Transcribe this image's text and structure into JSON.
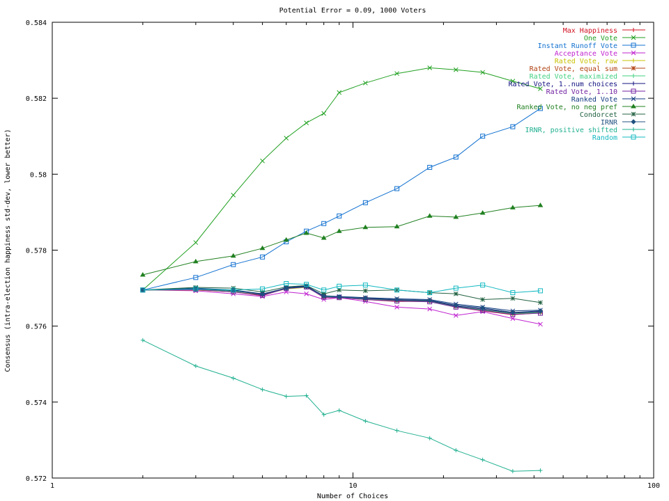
{
  "chart_data": {
    "type": "line",
    "title": "Potential Error = 0.09, 1000 Voters",
    "xlabel": "Number of Choices",
    "ylabel": "Consensus (intra-election happiness std-dev, lower better)",
    "xscale": "log",
    "xlim": [
      1,
      100
    ],
    "ylim": [
      0.572,
      0.584
    ],
    "xticks": [
      1,
      10,
      100
    ],
    "xtick_labels": [
      "1",
      "10",
      "100"
    ],
    "yticks": [
      0.572,
      0.574,
      0.576,
      0.578,
      0.58,
      0.582,
      0.584
    ],
    "ytick_labels": [
      "0.572",
      "0.574",
      "0.576",
      "0.578",
      "0.58",
      "0.582",
      "0.584"
    ],
    "grid": false,
    "legend_position": "top-right",
    "x": [
      2,
      3,
      4,
      5,
      6,
      7,
      8,
      9,
      11,
      14,
      18,
      22,
      27,
      34,
      42
    ],
    "series": [
      {
        "name": "Max Happiness",
        "color": "#d01020",
        "marker": "plus",
        "values": [
          0.57695,
          0.57695,
          0.5769,
          0.5768,
          0.577,
          0.57705,
          0.57675,
          0.57675,
          0.5767,
          0.57665,
          0.57665,
          0.5765,
          0.5764,
          0.5763,
          0.57635
        ]
      },
      {
        "name": "One Vote",
        "color": "#20a020",
        "marker": "cross",
        "values": [
          0.57695,
          0.5782,
          0.57945,
          0.58035,
          0.58095,
          0.58135,
          0.5816,
          0.58215,
          0.5824,
          0.58265,
          0.5828,
          0.58275,
          0.58268,
          0.58245,
          0.58225
        ]
      },
      {
        "name": "Instant Runoff Vote",
        "color": "#1070d0",
        "marker": "square",
        "values": [
          0.57695,
          0.57728,
          0.57762,
          0.57782,
          0.57822,
          0.5785,
          0.5787,
          0.5789,
          0.57925,
          0.57962,
          0.58018,
          0.58045,
          0.581,
          0.58125,
          0.58173
        ]
      },
      {
        "name": "Acceptance Vote",
        "color": "#c020d0",
        "marker": "x",
        "values": [
          0.57695,
          0.57693,
          0.57685,
          0.57678,
          0.5769,
          0.57685,
          0.5767,
          0.57675,
          0.57665,
          0.5765,
          0.57645,
          0.57628,
          0.57638,
          0.5762,
          0.57605
        ]
      },
      {
        "name": "Rated Vote, raw",
        "color": "#c8c000",
        "marker": "plus",
        "values": [
          0.57695,
          0.57695,
          0.5769,
          0.57682,
          0.57698,
          0.57702,
          0.57678,
          0.57675,
          0.5767,
          0.57668,
          0.57665,
          0.57652,
          0.57642,
          0.57632,
          0.57636
        ]
      },
      {
        "name": "Rated Vote, equal sum",
        "color": "#b04010",
        "marker": "star",
        "values": [
          0.57695,
          0.57697,
          0.57693,
          0.57685,
          0.577,
          0.57704,
          0.57678,
          0.57676,
          0.57672,
          0.57668,
          0.57666,
          0.57652,
          0.57644,
          0.57634,
          0.57637
        ]
      },
      {
        "name": "Rated Vote, maximized",
        "color": "#40d080",
        "marker": "plus",
        "values": [
          0.57695,
          0.57696,
          0.57692,
          0.57684,
          0.57699,
          0.57703,
          0.57677,
          0.57676,
          0.57671,
          0.57667,
          0.57665,
          0.57651,
          0.57643,
          0.57633,
          0.57636
        ]
      },
      {
        "name": "Rated Vote, 1..num choices",
        "color": "#101080",
        "marker": "plus",
        "values": [
          0.57695,
          0.57698,
          0.57694,
          0.57683,
          0.57701,
          0.57706,
          0.57679,
          0.57677,
          0.57673,
          0.57669,
          0.57667,
          0.57653,
          0.57645,
          0.57635,
          0.57638
        ]
      },
      {
        "name": "Rated Vote, 1..10",
        "color": "#7020a0",
        "marker": "square",
        "values": [
          0.57695,
          0.57696,
          0.5769,
          0.57681,
          0.57699,
          0.57703,
          0.57676,
          0.57675,
          0.5767,
          0.57666,
          0.57664,
          0.5765,
          0.57641,
          0.57631,
          0.57634
        ]
      },
      {
        "name": "Ranked Vote",
        "color": "#103880",
        "marker": "x",
        "values": [
          0.57695,
          0.577,
          0.57695,
          0.57685,
          0.577,
          0.57705,
          0.5768,
          0.57678,
          0.57675,
          0.57672,
          0.5767,
          0.57658,
          0.5765,
          0.5764,
          0.57642
        ]
      },
      {
        "name": "Ranked Vote, no neg pref",
        "color": "#208020",
        "marker": "triangle",
        "values": [
          0.57735,
          0.5777,
          0.57785,
          0.57805,
          0.57827,
          0.57845,
          0.57832,
          0.5785,
          0.5786,
          0.57862,
          0.5789,
          0.57887,
          0.57898,
          0.57912,
          0.57918
        ]
      },
      {
        "name": "Condorcet",
        "color": "#206040",
        "marker": "star",
        "values": [
          0.57695,
          0.57702,
          0.577,
          0.5769,
          0.57703,
          0.57707,
          0.57685,
          0.57695,
          0.57693,
          0.57695,
          0.57688,
          0.57685,
          0.5767,
          0.57673,
          0.57662
        ]
      },
      {
        "name": "IRNR",
        "color": "#205080",
        "marker": "diamond",
        "values": [
          0.57695,
          0.57698,
          0.57694,
          0.57684,
          0.577,
          0.57704,
          0.57679,
          0.57677,
          0.57674,
          0.5767,
          0.57668,
          0.57655,
          0.57648,
          0.57636,
          0.5764
        ]
      },
      {
        "name": "IRNR, positive shifted",
        "color": "#20b090",
        "marker": "plus",
        "values": [
          0.57563,
          0.57495,
          0.57463,
          0.57433,
          0.57415,
          0.57417,
          0.57367,
          0.57378,
          0.5735,
          0.57325,
          0.57305,
          0.57273,
          0.57248,
          0.57218,
          0.5722
        ]
      },
      {
        "name": "Random",
        "color": "#10b8c0",
        "marker": "square",
        "values": [
          0.57695,
          0.57698,
          0.57695,
          0.57698,
          0.57712,
          0.5771,
          0.57695,
          0.57705,
          0.57708,
          0.57695,
          0.57688,
          0.577,
          0.57708,
          0.57688,
          0.57693
        ]
      }
    ]
  }
}
